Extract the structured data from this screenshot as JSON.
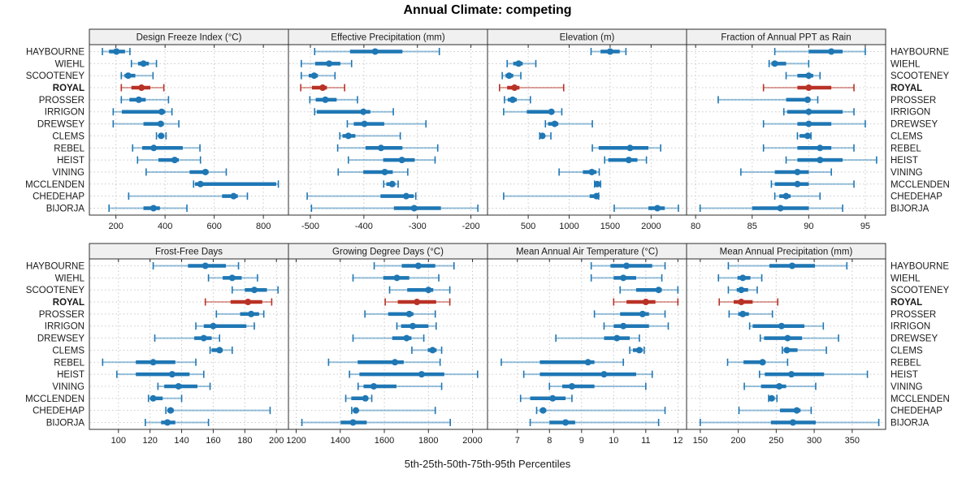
{
  "title": "Annual Climate: competing",
  "caption": "5th-25th-50th-75th-95th Percentiles",
  "highlight_station": "ROYAL",
  "colors": {
    "series": "#1f77b4",
    "highlight": "#b93226",
    "grid": "#c9c9c9",
    "header_bg": "#f0f0f0",
    "border": "#2e2e2e",
    "text": "#1a1a1a"
  },
  "stations": [
    "HAYBOURNE",
    "WIEHL",
    "SCOOTENEY",
    "ROYAL",
    "PROSSER",
    "IRRIGON",
    "DREWSEY",
    "CLEMS",
    "REBEL",
    "HEIST",
    "VINING",
    "MCCLENDEN",
    "CHEDEHAP",
    "BIJORJA"
  ],
  "chart_data": {
    "type": "dot-whisker percentile trellis (5th-25th-50th-75th-95th)",
    "percentiles": [
      5,
      25,
      50,
      75,
      95
    ],
    "layout": {
      "rows": 2,
      "cols": 4,
      "legend": "none",
      "grid": "dotted"
    },
    "panels": [
      {
        "title": "Design Freeze Index (°C)",
        "ticks": [
          200,
          400,
          600,
          800
        ],
        "range": [
          92,
          902
        ],
        "values": [
          [
            145,
            172,
            202,
            237,
            257
          ],
          [
            263,
            290,
            312,
            334,
            365
          ],
          [
            222,
            235,
            250,
            279,
            351
          ],
          [
            222,
            263,
            304,
            340,
            395
          ],
          [
            222,
            255,
            293,
            321,
            414
          ],
          [
            189,
            224,
            386,
            401,
            428
          ],
          [
            189,
            312,
            382,
            395,
            456
          ],
          [
            365,
            376,
            384,
            395,
            404
          ],
          [
            268,
            307,
            354,
            472,
            542
          ],
          [
            288,
            373,
            439,
            456,
            544
          ],
          [
            323,
            500,
            564,
            577,
            649
          ],
          [
            516,
            522,
            544,
            852,
            861
          ],
          [
            252,
            632,
            679,
            696,
            735
          ],
          [
            172,
            312,
            353,
            379,
            489
          ]
        ]
      },
      {
        "title": "Effective Precipitation (mm)",
        "ticks": [
          -500,
          -400,
          -300,
          -200
        ],
        "range": [
          -541,
          -169
        ],
        "values": [
          [
            -492,
            -426,
            -379,
            -328,
            -259
          ],
          [
            -517,
            -491,
            -465,
            -444,
            -423
          ],
          [
            -517,
            -503,
            -493,
            -486,
            -454
          ],
          [
            -518,
            -497,
            -477,
            -469,
            -436
          ],
          [
            -501,
            -490,
            -472,
            -451,
            -412
          ],
          [
            -492,
            -488,
            -401,
            -388,
            -345
          ],
          [
            -431,
            -419,
            -399,
            -362,
            -284
          ],
          [
            -445,
            -440,
            -429,
            -416,
            -332
          ],
          [
            -449,
            -397,
            -368,
            -328,
            -262
          ],
          [
            -429,
            -364,
            -329,
            -305,
            -267
          ],
          [
            -448,
            -401,
            -361,
            -346,
            -318
          ],
          [
            -363,
            -358,
            -347,
            -342,
            -336
          ],
          [
            -506,
            -369,
            -321,
            -307,
            -303
          ],
          [
            -498,
            -344,
            -306,
            -256,
            -187
          ]
        ]
      },
      {
        "title": "Elevation (m)",
        "ticks": [
          500,
          1000,
          1500,
          2000
        ],
        "range": [
          3,
          2433
        ],
        "values": [
          [
            1267,
            1383,
            1500,
            1617,
            1693
          ],
          [
            243,
            317,
            383,
            433,
            593
          ],
          [
            183,
            223,
            267,
            317,
            410
          ],
          [
            150,
            243,
            333,
            393,
            933
          ],
          [
            210,
            250,
            310,
            360,
            527
          ],
          [
            200,
            483,
            783,
            817,
            910
          ],
          [
            710,
            743,
            823,
            867,
            1283
          ],
          [
            640,
            650,
            673,
            700,
            777
          ],
          [
            1283,
            1360,
            1743,
            1967,
            2117
          ],
          [
            1433,
            1477,
            1727,
            1833,
            1943
          ],
          [
            877,
            1167,
            1277,
            1333,
            1367
          ],
          [
            1310,
            1317,
            1343,
            1367,
            1383
          ],
          [
            200,
            1250,
            1333,
            1350,
            1360
          ],
          [
            1550,
            1967,
            2077,
            2167,
            2333
          ]
        ]
      },
      {
        "title": "Fraction of Annual PPT as Rain",
        "ticks": [
          80,
          85,
          90,
          95
        ],
        "range": [
          79.2,
          96.8
        ],
        "values": [
          [
            87,
            90,
            92,
            93,
            95
          ],
          [
            86.5,
            86.7,
            87,
            88,
            90
          ],
          [
            88,
            89,
            90,
            90.4,
            91
          ],
          [
            86,
            89,
            90,
            92,
            94
          ],
          [
            82,
            88,
            89.9,
            90.1,
            90.8
          ],
          [
            87.8,
            88.1,
            90,
            93,
            94
          ],
          [
            86,
            89,
            90,
            92,
            95
          ],
          [
            89,
            89.2,
            89.9,
            90,
            90.2
          ],
          [
            86,
            89,
            91,
            92,
            94
          ],
          [
            88,
            89,
            91,
            93,
            96
          ],
          [
            84,
            87,
            89,
            90,
            92
          ],
          [
            86.7,
            87,
            89,
            90,
            94
          ],
          [
            87,
            87.4,
            88,
            88.4,
            91
          ],
          [
            80.4,
            85,
            87.5,
            90,
            93
          ]
        ]
      },
      {
        "title": "Frost-Free Days",
        "ticks": [
          100,
          120,
          140,
          160,
          180,
          200
        ],
        "range": [
          81.6,
          207.6
        ],
        "values": [
          [
            122,
            144,
            155,
            168,
            176
          ],
          [
            157,
            166,
            172,
            178,
            188
          ],
          [
            172,
            180,
            186,
            194,
            201
          ],
          [
            155,
            171,
            182,
            191,
            197
          ],
          [
            162,
            177,
            184,
            189,
            192
          ],
          [
            149,
            154,
            160,
            181,
            186
          ],
          [
            123,
            148,
            154,
            159,
            164
          ],
          [
            158,
            159,
            164,
            166,
            172
          ],
          [
            90,
            111,
            122,
            136,
            149
          ],
          [
            99,
            111,
            134,
            145,
            154
          ],
          [
            125,
            129,
            138,
            150,
            158
          ],
          [
            119,
            120,
            122,
            128,
            140
          ],
          [
            130,
            131,
            133,
            135,
            196
          ],
          [
            117,
            127,
            131,
            136,
            157
          ]
        ]
      },
      {
        "title": "Growing Degree Days (°C)",
        "ticks": [
          1200,
          1400,
          1600,
          1800,
          2000
        ],
        "range": [
          1165,
          2068
        ],
        "values": [
          [
            1554,
            1679,
            1754,
            1831,
            1916
          ],
          [
            1458,
            1595,
            1657,
            1713,
            1847
          ],
          [
            1624,
            1704,
            1800,
            1822,
            1897
          ],
          [
            1604,
            1661,
            1748,
            1835,
            1897
          ],
          [
            1512,
            1617,
            1713,
            1732,
            1831
          ],
          [
            1657,
            1676,
            1729,
            1800,
            1835
          ],
          [
            1458,
            1636,
            1701,
            1723,
            1779
          ],
          [
            1725,
            1797,
            1819,
            1837,
            1860
          ],
          [
            1347,
            1479,
            1648,
            1688,
            1853
          ],
          [
            1442,
            1487,
            1769,
            1872,
            2023
          ],
          [
            1481,
            1506,
            1552,
            1655,
            1860
          ],
          [
            1425,
            1450,
            1514,
            1527,
            1543
          ],
          [
            1452,
            1458,
            1471,
            1479,
            1831
          ],
          [
            1226,
            1402,
            1458,
            1520,
            1899
          ]
        ]
      },
      {
        "title": "Mean Annual Air Temperature (°C)",
        "ticks": [
          7,
          8,
          9,
          10,
          11,
          12
        ],
        "range": [
          6.07,
          12.27
        ],
        "values": [
          [
            9.3,
            9.9,
            10.4,
            11.2,
            11.6
          ],
          [
            9.3,
            10.0,
            10.3,
            10.7,
            11.5
          ],
          [
            10.2,
            10.7,
            11.4,
            11.5,
            12.0
          ],
          [
            10.0,
            10.4,
            11.0,
            11.3,
            12.0
          ],
          [
            9.4,
            10.2,
            10.9,
            11.1,
            11.6
          ],
          [
            9.7,
            10.0,
            10.3,
            11.1,
            11.7
          ],
          [
            8.2,
            9.7,
            10.1,
            10.5,
            10.8
          ],
          [
            10.5,
            10.6,
            10.8,
            10.9,
            10.95
          ],
          [
            6.5,
            7.7,
            9.2,
            9.4,
            10.3
          ],
          [
            7.2,
            7.7,
            9.7,
            10.7,
            11.2
          ],
          [
            8.0,
            8.4,
            8.7,
            9.4,
            11.0
          ],
          [
            7.1,
            7.4,
            8.1,
            8.5,
            8.7
          ],
          [
            7.6,
            7.7,
            7.8,
            7.9,
            11.6
          ],
          [
            7.4,
            8.0,
            8.5,
            8.8,
            11.4
          ]
        ]
      },
      {
        "title": "Mean Annual Precipitation (mm)",
        "ticks": [
          150,
          200,
          250,
          300,
          350
        ],
        "range": [
          132,
          394
        ],
        "values": [
          [
            187,
            241,
            271,
            301,
            343
          ],
          [
            174,
            199,
            206,
            216,
            231
          ],
          [
            187,
            198,
            204,
            213,
            225
          ],
          [
            175,
            194,
            204,
            219,
            252
          ],
          [
            188,
            200,
            206,
            214,
            245
          ],
          [
            215,
            219,
            257,
            287,
            312
          ],
          [
            229,
            234,
            265,
            284,
            332
          ],
          [
            258,
            260,
            264,
            278,
            316
          ],
          [
            186,
            207,
            232,
            236,
            265
          ],
          [
            228,
            235,
            270,
            313,
            370
          ],
          [
            208,
            230,
            254,
            263,
            302
          ],
          [
            240,
            242,
            244,
            248,
            251
          ],
          [
            201,
            255,
            277,
            282,
            296
          ],
          [
            150,
            243,
            272,
            302,
            385
          ]
        ]
      }
    ]
  }
}
